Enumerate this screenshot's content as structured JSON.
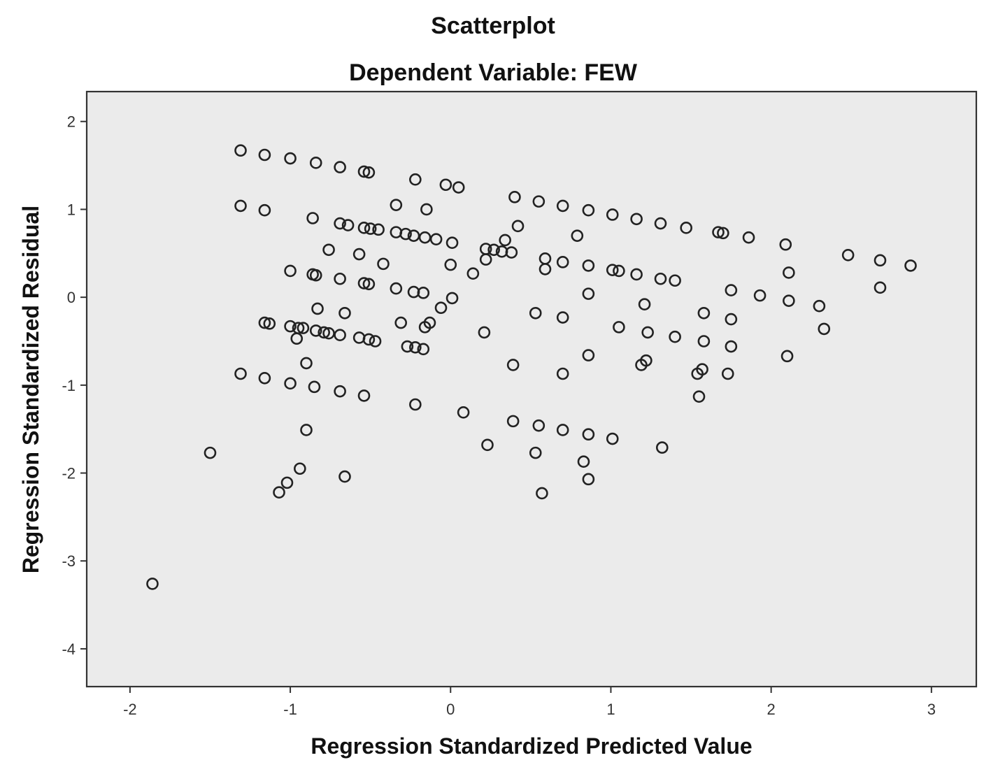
{
  "chart_data": {
    "type": "scatter",
    "title": "Scatterplot",
    "subtitle": "Dependent Variable: FEW",
    "xlabel": "Regression Standardized Predicted Value",
    "ylabel": "Regression Standardized Residual",
    "xlim": [
      -2.27,
      3.28
    ],
    "ylim": [
      -4.43,
      2.34
    ],
    "xticks": [
      "-2",
      "-1",
      "0",
      "1",
      "2",
      "3"
    ],
    "yticks": [
      "2",
      "1",
      "0",
      "-1",
      "-2",
      "-3",
      "-4"
    ],
    "xtick_values": [
      -2,
      -1,
      0,
      1,
      2,
      3
    ],
    "ytick_values": [
      2,
      1,
      0,
      -1,
      -2,
      -3,
      -4
    ],
    "plot_background": "#ebebeb",
    "marker": "open-circle",
    "grid": false,
    "points": [
      [
        -1.31,
        1.67
      ],
      [
        -1.16,
        1.62
      ],
      [
        -1.0,
        1.58
      ],
      [
        -0.84,
        1.53
      ],
      [
        -0.69,
        1.48
      ],
      [
        -0.54,
        1.43
      ],
      [
        -0.51,
        1.42
      ],
      [
        -0.22,
        1.34
      ],
      [
        -0.03,
        1.28
      ],
      [
        0.05,
        1.25
      ],
      [
        0.4,
        1.14
      ],
      [
        0.55,
        1.09
      ],
      [
        0.7,
        1.04
      ],
      [
        0.86,
        0.99
      ],
      [
        1.01,
        0.94
      ],
      [
        1.16,
        0.89
      ],
      [
        1.31,
        0.84
      ],
      [
        1.47,
        0.79
      ],
      [
        1.67,
        0.74
      ],
      [
        1.7,
        0.73
      ],
      [
        1.86,
        0.68
      ],
      [
        2.09,
        0.6
      ],
      [
        -1.31,
        1.04
      ],
      [
        -1.16,
        0.99
      ],
      [
        -0.86,
        0.9
      ],
      [
        -0.69,
        0.84
      ],
      [
        -0.64,
        0.82
      ],
      [
        -0.54,
        0.79
      ],
      [
        -0.5,
        0.78
      ],
      [
        -0.45,
        0.77
      ],
      [
        -0.34,
        0.74
      ],
      [
        -0.28,
        0.72
      ],
      [
        -0.23,
        0.7
      ],
      [
        -0.16,
        0.68
      ],
      [
        -0.09,
        0.66
      ],
      [
        0.01,
        0.62
      ],
      [
        -0.34,
        1.05
      ],
      [
        -0.15,
        1.0
      ],
      [
        0.34,
        0.65
      ],
      [
        0.42,
        0.81
      ],
      [
        0.79,
        0.7
      ],
      [
        -0.76,
        0.54
      ],
      [
        -0.57,
        0.49
      ],
      [
        -0.42,
        0.38
      ],
      [
        -1.0,
        0.3
      ],
      [
        -0.86,
        0.26
      ],
      [
        -0.84,
        0.25
      ],
      [
        -0.69,
        0.21
      ],
      [
        -0.54,
        0.16
      ],
      [
        -0.51,
        0.15
      ],
      [
        -0.34,
        0.1
      ],
      [
        -0.23,
        0.06
      ],
      [
        -0.17,
        0.05
      ],
      [
        0.0,
        0.37
      ],
      [
        0.14,
        0.27
      ],
      [
        0.22,
        0.55
      ],
      [
        0.27,
        0.54
      ],
      [
        0.32,
        0.52
      ],
      [
        0.38,
        0.51
      ],
      [
        0.22,
        0.43
      ],
      [
        0.59,
        0.44
      ],
      [
        0.59,
        0.32
      ],
      [
        0.7,
        0.4
      ],
      [
        0.86,
        0.36
      ],
      [
        1.01,
        0.31
      ],
      [
        1.05,
        0.3
      ],
      [
        1.16,
        0.26
      ],
      [
        1.31,
        0.21
      ],
      [
        1.4,
        0.19
      ],
      [
        0.86,
        0.04
      ],
      [
        -0.06,
        -0.12
      ],
      [
        0.01,
        -0.01
      ],
      [
        1.75,
        0.08
      ],
      [
        1.93,
        0.02
      ],
      [
        2.11,
        0.28
      ],
      [
        2.11,
        -0.04
      ],
      [
        2.3,
        -0.1
      ],
      [
        2.33,
        -0.36
      ],
      [
        2.48,
        0.48
      ],
      [
        2.68,
        0.42
      ],
      [
        2.68,
        0.11
      ],
      [
        2.87,
        0.36
      ],
      [
        -1.16,
        -0.29
      ],
      [
        -1.13,
        -0.3
      ],
      [
        -1.0,
        -0.33
      ],
      [
        -0.96,
        -0.47
      ],
      [
        -0.95,
        -0.35
      ],
      [
        -0.92,
        -0.35
      ],
      [
        -0.84,
        -0.38
      ],
      [
        -0.79,
        -0.4
      ],
      [
        -0.76,
        -0.41
      ],
      [
        -0.69,
        -0.43
      ],
      [
        -0.66,
        -0.18
      ],
      [
        -0.83,
        -0.13
      ],
      [
        -0.57,
        -0.46
      ],
      [
        -0.51,
        -0.48
      ],
      [
        -0.47,
        -0.5
      ],
      [
        -0.31,
        -0.29
      ],
      [
        -0.27,
        -0.56
      ],
      [
        -0.22,
        -0.57
      ],
      [
        -0.17,
        -0.59
      ],
      [
        -0.16,
        -0.34
      ],
      [
        -0.13,
        -0.29
      ],
      [
        0.21,
        -0.4
      ],
      [
        0.39,
        -0.77
      ],
      [
        0.53,
        -0.18
      ],
      [
        0.7,
        -0.23
      ],
      [
        0.7,
        -0.87
      ],
      [
        0.86,
        -0.66
      ],
      [
        1.05,
        -0.34
      ],
      [
        1.19,
        -0.77
      ],
      [
        1.21,
        -0.08
      ],
      [
        1.22,
        -0.72
      ],
      [
        1.23,
        -0.4
      ],
      [
        1.4,
        -0.45
      ],
      [
        1.54,
        -0.87
      ],
      [
        1.57,
        -0.82
      ],
      [
        1.58,
        -0.18
      ],
      [
        1.58,
        -0.5
      ],
      [
        1.73,
        -0.87
      ],
      [
        1.75,
        -0.25
      ],
      [
        1.75,
        -0.56
      ],
      [
        2.1,
        -0.67
      ],
      [
        1.55,
        -1.13
      ],
      [
        -0.9,
        -0.75
      ],
      [
        -1.31,
        -0.87
      ],
      [
        -1.16,
        -0.92
      ],
      [
        -1.0,
        -0.98
      ],
      [
        -0.85,
        -1.02
      ],
      [
        -0.69,
        -1.07
      ],
      [
        -0.54,
        -1.12
      ],
      [
        -0.22,
        -1.22
      ],
      [
        0.08,
        -1.31
      ],
      [
        0.39,
        -1.41
      ],
      [
        0.55,
        -1.46
      ],
      [
        0.7,
        -1.51
      ],
      [
        0.86,
        -1.56
      ],
      [
        1.01,
        -1.61
      ],
      [
        1.32,
        -1.71
      ],
      [
        0.23,
        -1.68
      ],
      [
        0.53,
        -1.77
      ],
      [
        0.83,
        -1.87
      ],
      [
        0.86,
        -2.07
      ],
      [
        0.57,
        -2.23
      ],
      [
        -1.5,
        -1.77
      ],
      [
        -0.9,
        -1.51
      ],
      [
        -0.94,
        -1.95
      ],
      [
        -1.02,
        -2.11
      ],
      [
        -1.07,
        -2.22
      ],
      [
        -0.66,
        -2.04
      ],
      [
        -1.86,
        -3.26
      ]
    ]
  }
}
